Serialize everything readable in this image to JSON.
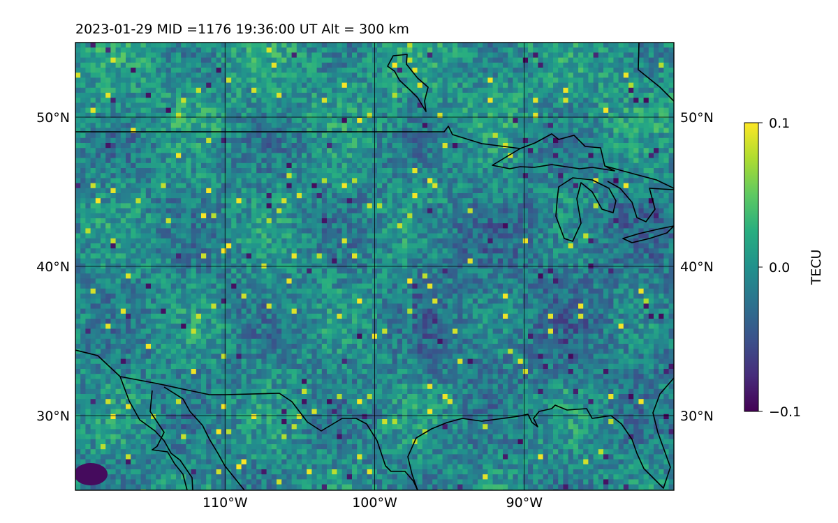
{
  "title": "2023-01-29  MID =1176    19:36:00  UT  Alt = 300 km",
  "map": {
    "lon_range": [
      -120,
      -80
    ],
    "lat_range": [
      25,
      55
    ],
    "grid": true,
    "lat_ticks": [
      {
        "value": 30,
        "label": "30°N"
      },
      {
        "value": 40,
        "label": "40°N"
      },
      {
        "value": 50,
        "label": "50°N"
      }
    ],
    "lon_ticks": [
      {
        "value": -110,
        "label": "110°W"
      },
      {
        "value": -100,
        "label": "100°W"
      },
      {
        "value": -90,
        "label": "90°W"
      }
    ],
    "field": "TEC perturbation",
    "coastlines": true,
    "country_borders": true
  },
  "colorbar": {
    "label": "TECU",
    "colormap": "viridis",
    "min": -0.1,
    "max": 0.1,
    "ticks": [
      {
        "value": 0.1,
        "label": "0.1"
      },
      {
        "value": 0.0,
        "label": "0.0"
      },
      {
        "value": -0.1,
        "label": "−0.1"
      }
    ]
  }
}
